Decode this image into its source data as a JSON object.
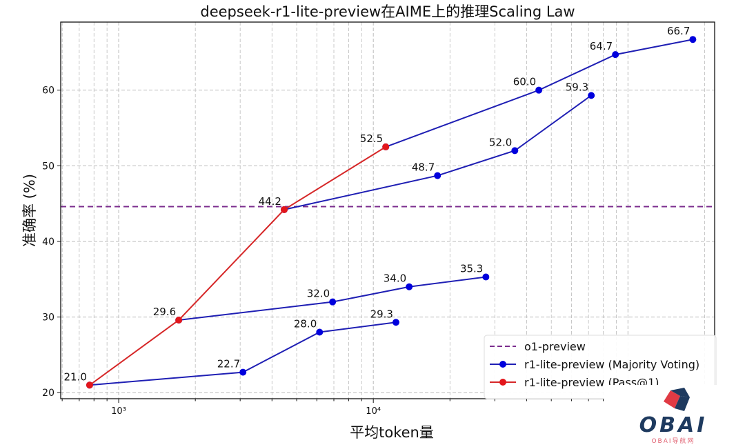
{
  "chart_data": {
    "type": "line",
    "title": "deepseek-r1-lite-preview在AIME上的推理Scaling Law",
    "xlabel": "平均token量",
    "ylabel": "准确率 (%)",
    "x_scale": "log",
    "xlim": [
      592,
      219000
    ],
    "ylim": [
      19.2,
      69.0
    ],
    "x_ticks": [
      {
        "value": 1000,
        "label": "10³"
      },
      {
        "value": 10000,
        "label": "10⁴"
      }
    ],
    "y_ticks": [
      20,
      30,
      40,
      50,
      60
    ],
    "grid": true,
    "legend_position": "lower-right",
    "reference_line": {
      "name": "o1-preview",
      "y": 44.6,
      "color": "#7b2d8e",
      "style": "dashed"
    },
    "series": [
      {
        "name": "r1-lite-preview (Majority Voting)",
        "color": "#1f1fb4",
        "marker_color": "#0000dd",
        "segments": [
          {
            "x": [
              769,
              3076,
              6150,
              12270
            ],
            "y": [
              21.0,
              22.7,
              28.0,
              29.3
            ]
          },
          {
            "x": [
              1722,
              6920,
              13830,
              27670
            ],
            "y": [
              29.6,
              32.0,
              34.0,
              35.3
            ]
          },
          {
            "x": [
              4467,
              17870,
              35950,
              71770
            ],
            "y": [
              44.2,
              48.7,
              52.0,
              59.3
            ]
          },
          {
            "x": [
              11190,
              44670,
              89300,
              179800
            ],
            "y": [
              52.5,
              60.0,
              64.7,
              66.7
            ]
          }
        ]
      },
      {
        "name": "r1-lite-preview (Pass@1)",
        "color": "#d62728",
        "marker_color": "#e3161b",
        "segments": [
          {
            "x": [
              769,
              1722,
              4467,
              11190
            ],
            "y": [
              21.0,
              29.6,
              44.2,
              52.5
            ]
          }
        ]
      }
    ],
    "data_labels": [
      {
        "x": 769,
        "y": 21.0,
        "label": "21.0"
      },
      {
        "x": 3076,
        "y": 22.7,
        "label": "22.7"
      },
      {
        "x": 6150,
        "y": 28.0,
        "label": "28.0"
      },
      {
        "x": 12270,
        "y": 29.3,
        "label": "29.3"
      },
      {
        "x": 1722,
        "y": 29.6,
        "label": "29.6"
      },
      {
        "x": 6920,
        "y": 32.0,
        "label": "32.0"
      },
      {
        "x": 13830,
        "y": 34.0,
        "label": "34.0"
      },
      {
        "x": 27670,
        "y": 35.3,
        "label": "35.3"
      },
      {
        "x": 4467,
        "y": 44.2,
        "label": "44.2"
      },
      {
        "x": 17870,
        "y": 48.7,
        "label": "48.7"
      },
      {
        "x": 35950,
        "y": 52.0,
        "label": "52.0"
      },
      {
        "x": 71770,
        "y": 59.3,
        "label": "59.3"
      },
      {
        "x": 11190,
        "y": 52.5,
        "label": "52.5"
      },
      {
        "x": 44670,
        "y": 60.0,
        "label": "60.0"
      },
      {
        "x": 89300,
        "y": 64.7,
        "label": "64.7"
      },
      {
        "x": 179800,
        "y": 66.7,
        "label": "66.7"
      }
    ]
  },
  "watermark": {
    "logo_text": "OBAI",
    "sub_text": "OBAI导航网"
  }
}
